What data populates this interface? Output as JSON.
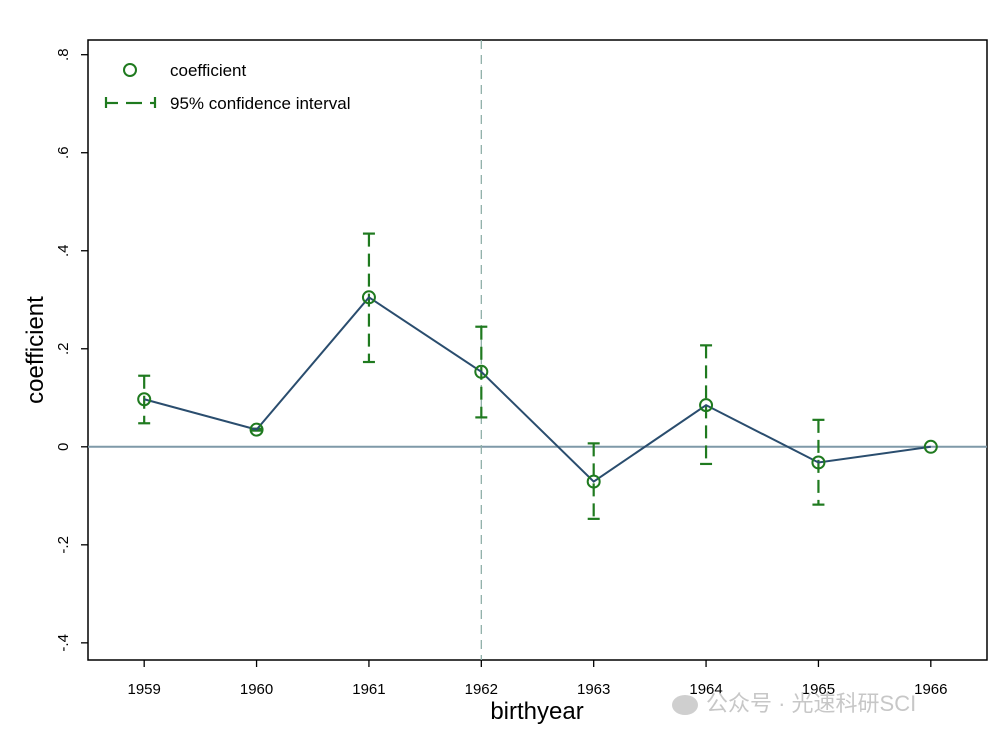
{
  "chart_data": {
    "type": "line",
    "xlabel": "birthyear",
    "ylabel": "coefficient",
    "x": [
      1959,
      1960,
      1961,
      1962,
      1963,
      1964,
      1965,
      1966
    ],
    "x_tick_labels": [
      "1959",
      "1960",
      "1961",
      "1962",
      "1963",
      "1964",
      "1965",
      "1966"
    ],
    "y_ticks": [
      0.8,
      0.6,
      0.4,
      0.2,
      0,
      -0.2,
      -0.4
    ],
    "y_tick_labels": [
      ".8",
      ".6",
      ".4",
      ".2",
      "0",
      "-.2",
      "-.4"
    ],
    "xlim": [
      1958.5,
      1966.5
    ],
    "ylim": [
      -0.435,
      0.83
    ],
    "series": [
      {
        "name": "coefficient",
        "values": [
          0.097,
          0.035,
          0.305,
          0.153,
          -0.071,
          0.085,
          -0.032,
          0.0
        ]
      }
    ],
    "confidence_interval": {
      "name": "95% confidence interval",
      "lower": [
        0.048,
        0.033,
        0.173,
        0.06,
        -0.147,
        -0.035,
        -0.118,
        null
      ],
      "upper": [
        0.145,
        0.037,
        0.435,
        0.245,
        0.007,
        0.207,
        0.055,
        null
      ]
    },
    "reference_lines": {
      "horizontal_y": 0,
      "vertical_x": 1962
    },
    "legend": {
      "position": "top-left",
      "entries": [
        "coefficient",
        "95% confidence interval"
      ]
    },
    "colors": {
      "line": "#2a4d6e",
      "marker": "#1f7a1f",
      "ci": "#1f7a1f",
      "zero_line": "#7f99a8",
      "vline": "#8fb0a8"
    }
  },
  "watermark": {
    "text": "公众号 · 光速科研SCI"
  }
}
